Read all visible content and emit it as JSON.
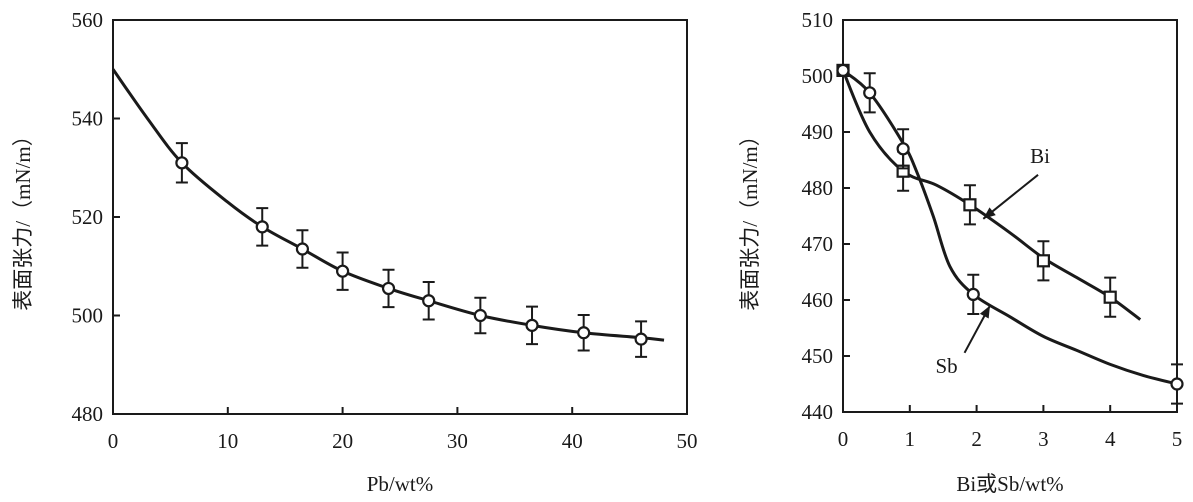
{
  "chart_data": [
    {
      "type": "line",
      "xlabel": "Pb/wt%",
      "ylabel": "表面张力/（mN/m）",
      "xlim": [
        0,
        50
      ],
      "ylim": [
        480,
        560
      ],
      "xticks": [
        0,
        10,
        20,
        30,
        40,
        50
      ],
      "yticks": [
        480,
        500,
        520,
        540,
        560
      ],
      "series": [
        {
          "name": "Pb",
          "marker": "circle",
          "x": [
            6,
            13,
            16.5,
            20,
            24,
            27.5,
            32,
            36.5,
            41,
            46
          ],
          "y": [
            531,
            518,
            513.5,
            509,
            505.5,
            503,
            500,
            498,
            496.5,
            495.2
          ],
          "err": [
            4,
            3.8,
            3.8,
            3.8,
            3.8,
            3.8,
            3.6,
            3.8,
            3.6,
            3.6
          ],
          "curve_x": [
            0,
            3,
            6,
            10,
            13,
            16.5,
            20,
            24,
            27.5,
            32,
            36.5,
            41,
            46,
            48
          ],
          "curve_y": [
            550,
            540,
            531,
            523,
            518,
            513.5,
            509,
            505.5,
            503,
            500,
            498,
            496.5,
            495.5,
            495
          ]
        }
      ]
    },
    {
      "type": "line",
      "xlabel": "Bi或Sb/wt%",
      "ylabel": "表面张力/（mN/m）",
      "xlim": [
        0,
        5
      ],
      "ylim": [
        440,
        510
      ],
      "xticks": [
        0,
        1,
        2,
        3,
        4,
        5
      ],
      "yticks": [
        440,
        450,
        460,
        470,
        480,
        490,
        500,
        510
      ],
      "series": [
        {
          "name": "Bi",
          "marker": "square",
          "x": [
            0,
            0.9,
            1.9,
            3,
            4
          ],
          "y": [
            501,
            483,
            477,
            467,
            460.5
          ],
          "err": [
            0,
            3.5,
            3.5,
            3.5,
            3.5
          ],
          "curve_x": [
            0,
            0.4,
            0.9,
            1.4,
            1.9,
            2.5,
            3,
            3.5,
            4,
            4.45
          ],
          "curve_y": [
            501,
            490,
            483,
            480.5,
            477,
            472,
            467.5,
            464,
            460.5,
            456.5
          ]
        },
        {
          "name": "Sb",
          "marker": "circle",
          "x": [
            0,
            0.4,
            0.9,
            1.95,
            5
          ],
          "y": [
            501,
            497,
            487,
            461,
            445
          ],
          "err": [
            0,
            3.5,
            3.5,
            3.5,
            3.5
          ],
          "curve_x": [
            0,
            0.4,
            0.9,
            1.1,
            1.35,
            1.6,
            1.95,
            2.5,
            3,
            3.5,
            4,
            4.5,
            5
          ],
          "curve_y": [
            501,
            497,
            488,
            483,
            475,
            466,
            461,
            457,
            453.5,
            451,
            448.5,
            446.5,
            445
          ]
        }
      ],
      "annotations": [
        {
          "text": "Bi",
          "at_x": 2.1,
          "at_y": 474.5,
          "label_x": 2.95,
          "label_y": 484.5
        },
        {
          "text": "Sb",
          "at_x": 2.2,
          "at_y": 459,
          "label_x": 1.55,
          "label_y": 447
        }
      ]
    }
  ]
}
